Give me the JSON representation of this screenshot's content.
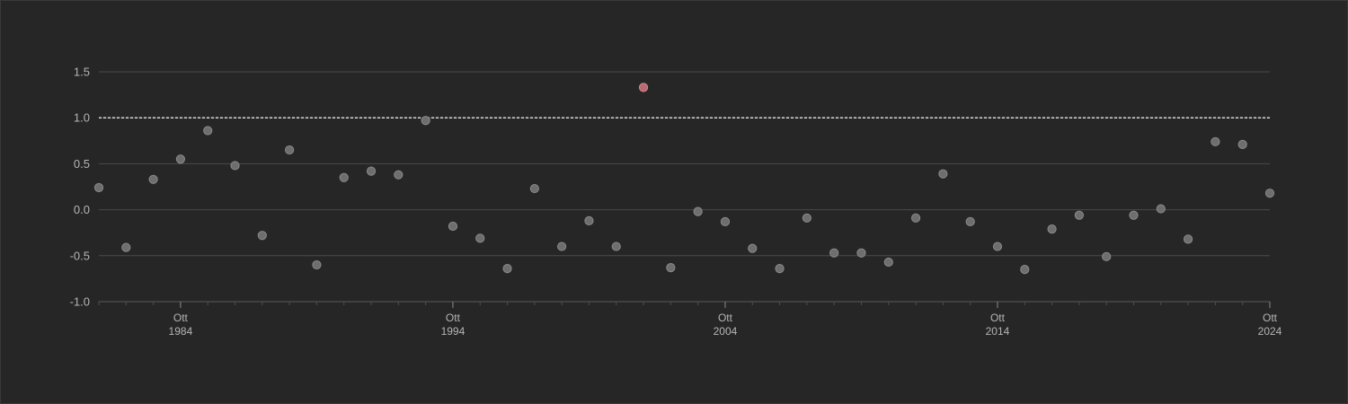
{
  "chart_data": {
    "type": "scatter",
    "title": "",
    "xlabel": "",
    "ylabel": "",
    "ylim": [
      -1.0,
      1.5
    ],
    "yticks": [
      "1.5",
      "1.0",
      "0.5",
      "0.0",
      "-0.5",
      "-1.0"
    ],
    "xticks": [
      {
        "month": "Ott",
        "year": "1984"
      },
      {
        "month": "Ott",
        "year": "1994"
      },
      {
        "month": "Ott",
        "year": "2004"
      },
      {
        "month": "Ott",
        "year": "2014"
      },
      {
        "month": "Ott",
        "year": "2024"
      }
    ],
    "xlim": [
      "1981-10",
      "2024-10"
    ],
    "threshold": 1.0,
    "grid": true,
    "colors": {
      "point": "#6e6e6e",
      "point_stroke": "#8a8a8a",
      "highlight": "#b76a72",
      "highlight_stroke": "#d9868f",
      "grid": "#4a4a4a",
      "threshold": "#e6e6e6"
    },
    "points": [
      {
        "date": "1981-10",
        "y": 0.24
      },
      {
        "date": "1982-10",
        "y": -0.41
      },
      {
        "date": "1983-10",
        "y": 0.33
      },
      {
        "date": "1984-10",
        "y": 0.55
      },
      {
        "date": "1985-10",
        "y": 0.86
      },
      {
        "date": "1986-10",
        "y": 0.48
      },
      {
        "date": "1987-10",
        "y": -0.28
      },
      {
        "date": "1988-10",
        "y": 0.65
      },
      {
        "date": "1989-10",
        "y": -0.6
      },
      {
        "date": "1990-10",
        "y": 0.35
      },
      {
        "date": "1991-10",
        "y": 0.42
      },
      {
        "date": "1992-10",
        "y": 0.38
      },
      {
        "date": "1993-10",
        "y": 0.97
      },
      {
        "date": "1994-10",
        "y": -0.18
      },
      {
        "date": "1995-10",
        "y": -0.31
      },
      {
        "date": "1996-10",
        "y": -0.64
      },
      {
        "date": "1997-10",
        "y": 0.23
      },
      {
        "date": "1998-10",
        "y": -0.4
      },
      {
        "date": "1999-10",
        "y": -0.12
      },
      {
        "date": "2000-10",
        "y": -0.4
      },
      {
        "date": "2001-10",
        "y": 1.33,
        "highlight": true
      },
      {
        "date": "2002-10",
        "y": -0.63
      },
      {
        "date": "2003-10",
        "y": -0.02
      },
      {
        "date": "2004-10",
        "y": -0.13
      },
      {
        "date": "2005-10",
        "y": -0.42
      },
      {
        "date": "2006-10",
        "y": -0.64
      },
      {
        "date": "2007-10",
        "y": -0.09
      },
      {
        "date": "2008-10",
        "y": -0.47
      },
      {
        "date": "2009-10",
        "y": -0.47
      },
      {
        "date": "2010-10",
        "y": -0.57
      },
      {
        "date": "2011-10",
        "y": -0.09
      },
      {
        "date": "2012-10",
        "y": 0.39
      },
      {
        "date": "2013-10",
        "y": -0.13
      },
      {
        "date": "2014-10",
        "y": -0.4
      },
      {
        "date": "2015-10",
        "y": -0.65
      },
      {
        "date": "2016-10",
        "y": -0.21
      },
      {
        "date": "2017-10",
        "y": -0.06
      },
      {
        "date": "2018-10",
        "y": -0.51
      },
      {
        "date": "2019-10",
        "y": -0.06
      },
      {
        "date": "2020-10",
        "y": 0.01
      },
      {
        "date": "2021-10",
        "y": -0.32
      },
      {
        "date": "2022-10",
        "y": 0.74
      },
      {
        "date": "2023-10",
        "y": 0.71
      },
      {
        "date": "2024-10",
        "y": 0.18
      }
    ]
  }
}
